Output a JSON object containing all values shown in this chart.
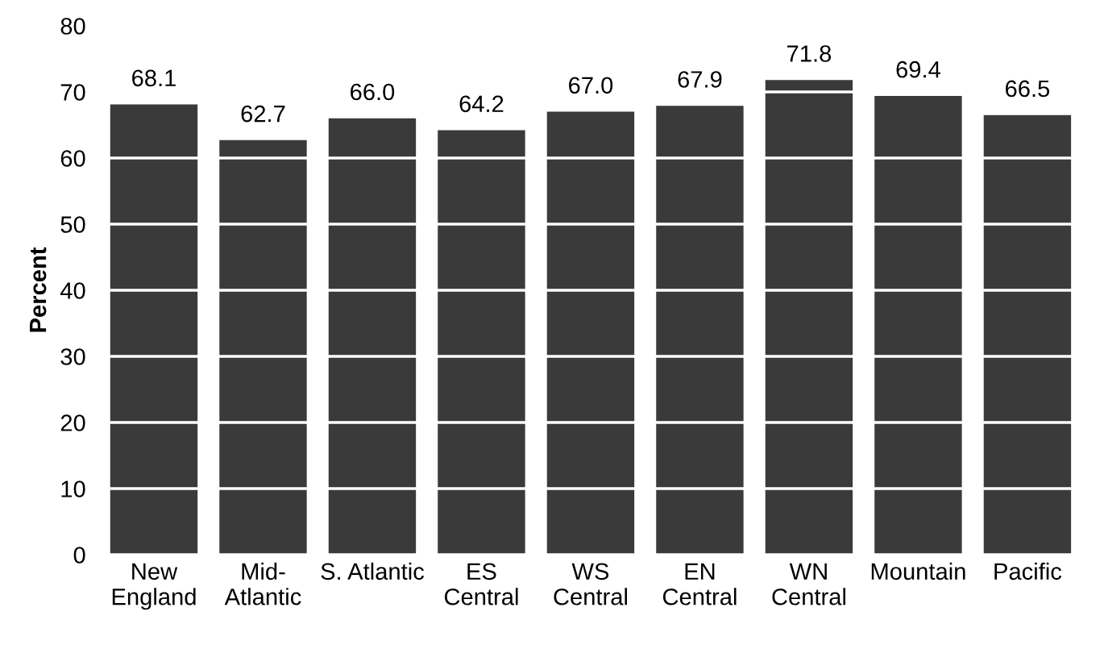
{
  "chart_data": {
    "type": "bar",
    "ylabel": "Percent",
    "categories": [
      "New\nEngland",
      "Mid-\nAtlantic",
      "S. Atlantic",
      "ES\nCentral",
      "WS\nCentral",
      "EN\nCentral",
      "WN\nCentral",
      "Mountain",
      "Pacific"
    ],
    "values": [
      68.1,
      62.7,
      66.0,
      64.2,
      67.0,
      67.9,
      71.8,
      69.4,
      66.5
    ],
    "value_labels": [
      "68.1",
      "62.7",
      "66.0",
      "64.2",
      "67.0",
      "67.9",
      "71.8",
      "69.4",
      "66.5"
    ],
    "color": "#3a3a3a",
    "ylim": [
      0,
      80
    ],
    "yticks": [
      0,
      10,
      20,
      30,
      40,
      50,
      60,
      70,
      80
    ],
    "grid": "y"
  }
}
